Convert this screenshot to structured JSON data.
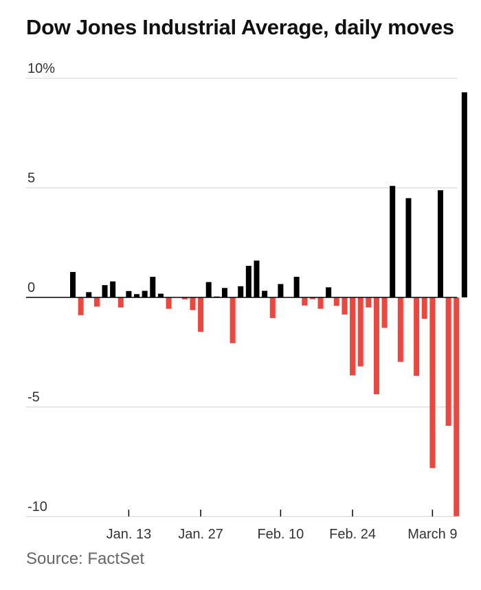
{
  "title": "Dow Jones Industrial Average, daily moves",
  "source": "Source: FactSet",
  "colors": {
    "up": "#000000",
    "down": "#f0443c",
    "grid": "#d9d9d9",
    "axis": "#000000"
  },
  "chart_data": {
    "type": "bar",
    "title": "Dow Jones Industrial Average, daily moves",
    "xlabel": "",
    "ylabel": "",
    "ylim": [
      -10,
      10
    ],
    "grid": true,
    "yticks": [
      {
        "value": 10,
        "label": "10%"
      },
      {
        "value": 5,
        "label": "5"
      },
      {
        "value": 0,
        "label": "0"
      },
      {
        "value": -5,
        "label": "-5"
      },
      {
        "value": -10,
        "label": "-10"
      }
    ],
    "xticks": [
      {
        "index": 7,
        "label": "Jan. 13"
      },
      {
        "index": 16,
        "label": "Jan. 27"
      },
      {
        "index": 26,
        "label": "Feb. 10"
      },
      {
        "index": 35,
        "label": "Feb. 24"
      },
      {
        "index": 45,
        "label": "March 9"
      }
    ],
    "values": [
      1.16,
      -0.81,
      0.24,
      -0.42,
      0.56,
      0.73,
      -0.46,
      0.29,
      0.15,
      0.3,
      0.94,
      0.17,
      -0.52,
      0.0,
      -0.09,
      -0.58,
      -1.57,
      0.7,
      0.04,
      0.43,
      -2.09,
      0.51,
      1.44,
      1.68,
      0.3,
      -0.94,
      0.61,
      0.0,
      0.94,
      -0.37,
      -0.08,
      -0.52,
      0.46,
      -0.38,
      -0.78,
      -3.56,
      -3.15,
      -0.46,
      -4.42,
      -1.39,
      5.09,
      -2.94,
      4.53,
      -3.58,
      -0.98,
      -7.79,
      4.89,
      -5.86,
      -9.99,
      9.36
    ]
  }
}
